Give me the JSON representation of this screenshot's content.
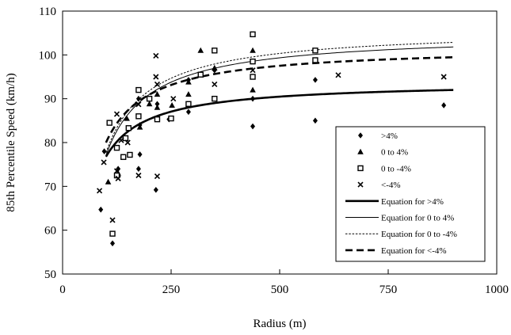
{
  "chart_data": {
    "type": "scatter",
    "title": "",
    "xlabel": "Radius (m)",
    "ylabel": "85th Percentile Speed (km/h)",
    "xlim": [
      0,
      1000
    ],
    "ylim": [
      50,
      110
    ],
    "xticks": [
      0,
      250,
      500,
      750,
      1000
    ],
    "yticks": [
      50,
      60,
      70,
      80,
      90,
      100,
      110
    ],
    "grid": false,
    "legend_position": "bottom-right",
    "series": [
      {
        "name": ">4%",
        "marker": "diamond",
        "points": [
          [
            88,
            64.7
          ],
          [
            96,
            78
          ],
          [
            115,
            57
          ],
          [
            128,
            74
          ],
          [
            175,
            90
          ],
          [
            178,
            84
          ],
          [
            178,
            77.3
          ],
          [
            175,
            74
          ],
          [
            215,
            69.2
          ],
          [
            218,
            88.8
          ],
          [
            245,
            85.3
          ],
          [
            290,
            87
          ],
          [
            290,
            94.3
          ],
          [
            350,
            96.5
          ],
          [
            438,
            90
          ],
          [
            438,
            83.7
          ],
          [
            582,
            94.3
          ],
          [
            582,
            85
          ],
          [
            878,
            88.5
          ]
        ]
      },
      {
        "name": "0 to 4%",
        "marker": "triangle",
        "points": [
          [
            105,
            71
          ],
          [
            128,
            73
          ],
          [
            148,
            85.5
          ],
          [
            178,
            83.5
          ],
          [
            200,
            88.8
          ],
          [
            218,
            88
          ],
          [
            218,
            91
          ],
          [
            252,
            88.5
          ],
          [
            290,
            91
          ],
          [
            290,
            93.8
          ],
          [
            318,
            101
          ],
          [
            350,
            97
          ],
          [
            438,
            101
          ],
          [
            438,
            92
          ]
        ]
      },
      {
        "name": "0 to -4%",
        "marker": "square",
        "points": [
          [
            108,
            84.5
          ],
          [
            115,
            59.2
          ],
          [
            125,
            78.8
          ],
          [
            125,
            72.5
          ],
          [
            140,
            76.7
          ],
          [
            145,
            81
          ],
          [
            152,
            83.3
          ],
          [
            155,
            77.2
          ],
          [
            175,
            92
          ],
          [
            175,
            86
          ],
          [
            200,
            90
          ],
          [
            218,
            85.3
          ],
          [
            250,
            85.5
          ],
          [
            290,
            88.8
          ],
          [
            318,
            95.5
          ],
          [
            350,
            101
          ],
          [
            350,
            90
          ],
          [
            438,
            104.7
          ],
          [
            438,
            98.5
          ],
          [
            438,
            95
          ],
          [
            582,
            101
          ],
          [
            582,
            98.8
          ]
        ]
      },
      {
        "name": "<-4%",
        "marker": "x",
        "points": [
          [
            85,
            69
          ],
          [
            95,
            75.5
          ],
          [
            115,
            62.3
          ],
          [
            125,
            86.5
          ],
          [
            125,
            73.5
          ],
          [
            128,
            71.8
          ],
          [
            135,
            80.5
          ],
          [
            150,
            80
          ],
          [
            175,
            88.7
          ],
          [
            175,
            72.5
          ],
          [
            215,
            99.8
          ],
          [
            215,
            95
          ],
          [
            218,
            93.3
          ],
          [
            218,
            72.3
          ],
          [
            255,
            90
          ],
          [
            350,
            93.3
          ],
          [
            438,
            96.5
          ],
          [
            635,
            95.4
          ],
          [
            878,
            95
          ]
        ]
      },
      {
        "name": "Equation for >4%",
        "line": "thick-solid",
        "equation": {
          "a": 93.9,
          "b": 1712
        }
      },
      {
        "name": "Equation for 0 to 4%",
        "line": "thin-solid",
        "equation": {
          "a": 104.9,
          "b": 2780
        }
      },
      {
        "name": "Equation for 0 to -4%",
        "line": "dotted",
        "equation": {
          "a": 106.0,
          "b": 2830
        }
      },
      {
        "name": "Equation for <-4%",
        "line": "thick-dashed",
        "equation": {
          "a": 101.9,
          "b": 2190
        }
      }
    ]
  }
}
